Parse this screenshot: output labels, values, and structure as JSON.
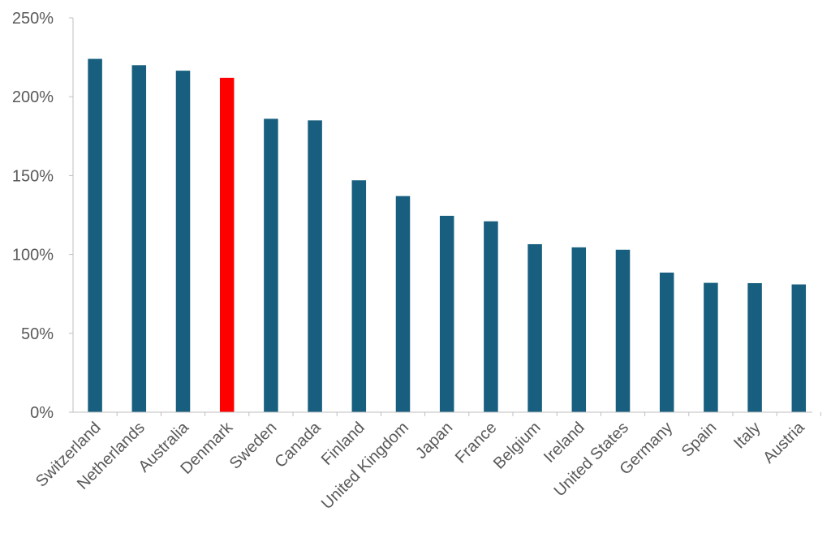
{
  "chart_data": {
    "type": "bar",
    "title": "",
    "xlabel": "",
    "ylabel": "",
    "ylim": [
      0,
      2.5
    ],
    "yticks": [
      "0%",
      "50%",
      "100%",
      "150%",
      "200%",
      "250%"
    ],
    "grid": false,
    "categories": [
      "Switzerland",
      "Netherlands",
      "Australia",
      "Denmark",
      "Sweden",
      "Canada",
      "Finland",
      "United Kingdom",
      "Japan",
      "France",
      "Belgium",
      "Ireland",
      "United States",
      "Germany",
      "Spain",
      "Italy",
      "Austria"
    ],
    "values": [
      2.24,
      2.2,
      2.165,
      2.12,
      1.86,
      1.85,
      1.47,
      1.37,
      1.245,
      1.21,
      1.065,
      1.045,
      1.03,
      0.885,
      0.82,
      0.818,
      0.81
    ],
    "colors": {
      "default": "#175E7F",
      "highlight": "#FF0000",
      "axis": "#BFBFBF"
    },
    "highlight_category": "Denmark"
  }
}
